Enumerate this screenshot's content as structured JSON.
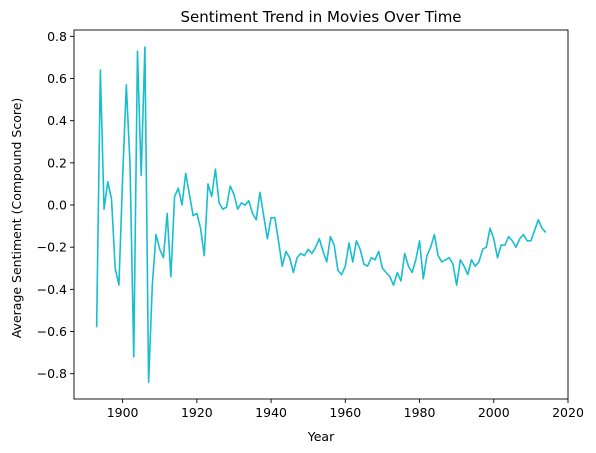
{
  "chart_data": {
    "type": "line",
    "title": "Sentiment Trend in Movies Over Time",
    "xlabel": "Year",
    "ylabel": "Average Sentiment (Compound Score)",
    "xlim": [
      1886.9,
      2020
    ],
    "ylim": [
      -0.92,
      0.83
    ],
    "xticks": [
      1900,
      1920,
      1940,
      1960,
      1980,
      2000,
      2020
    ],
    "yticks": [
      -0.8,
      -0.6,
      -0.4,
      -0.2,
      0.0,
      0.2,
      0.4,
      0.6,
      0.8
    ],
    "ytick_labels": [
      "−0.8",
      "−0.6",
      "−0.4",
      "−0.2",
      "0.0",
      "0.2",
      "0.4",
      "0.6",
      "0.8"
    ],
    "grid": false,
    "series": [
      {
        "name": "Average Sentiment",
        "color": "#17becf",
        "x": [
          1893,
          1894,
          1895,
          1896,
          1897,
          1898,
          1899,
          1900,
          1901,
          1902,
          1903,
          1904,
          1905,
          1906,
          1907,
          1908,
          1909,
          1910,
          1911,
          1912,
          1913,
          1914,
          1915,
          1916,
          1917,
          1918,
          1919,
          1920,
          1921,
          1922,
          1923,
          1924,
          1925,
          1926,
          1927,
          1928,
          1929,
          1930,
          1931,
          1932,
          1933,
          1934,
          1935,
          1936,
          1937,
          1938,
          1939,
          1940,
          1941,
          1942,
          1943,
          1944,
          1945,
          1946,
          1947,
          1948,
          1949,
          1950,
          1951,
          1952,
          1953,
          1954,
          1955,
          1956,
          1957,
          1958,
          1959,
          1960,
          1961,
          1962,
          1963,
          1964,
          1965,
          1966,
          1967,
          1968,
          1969,
          1970,
          1971,
          1972,
          1973,
          1974,
          1975,
          1976,
          1977,
          1978,
          1979,
          1980,
          1981,
          1982,
          1983,
          1984,
          1985,
          1986,
          1987,
          1988,
          1989,
          1990,
          1991,
          1992,
          1993,
          1994,
          1995,
          1996,
          1997,
          1998,
          1999,
          2000,
          2001,
          2002,
          2003,
          2004,
          2005,
          2006,
          2007,
          2008,
          2009,
          2010,
          2011,
          2012,
          2013,
          2014
        ],
        "values": [
          -0.58,
          0.64,
          -0.02,
          0.11,
          0.03,
          -0.3,
          -0.38,
          0.13,
          0.57,
          0.19,
          -0.72,
          0.73,
          0.14,
          0.75,
          -0.84,
          -0.38,
          -0.14,
          -0.21,
          -0.25,
          -0.04,
          -0.34,
          0.04,
          0.08,
          0.0,
          0.15,
          0.05,
          -0.05,
          -0.04,
          -0.11,
          -0.24,
          0.1,
          0.04,
          0.17,
          0.01,
          -0.02,
          -0.01,
          0.09,
          0.05,
          -0.02,
          0.01,
          0.0,
          0.02,
          -0.04,
          -0.07,
          0.06,
          -0.05,
          -0.16,
          -0.06,
          -0.06,
          -0.17,
          -0.29,
          -0.22,
          -0.25,
          -0.32,
          -0.25,
          -0.23,
          -0.24,
          -0.21,
          -0.23,
          -0.2,
          -0.16,
          -0.22,
          -0.27,
          -0.15,
          -0.19,
          -0.31,
          -0.33,
          -0.29,
          -0.18,
          -0.27,
          -0.17,
          -0.21,
          -0.28,
          -0.29,
          -0.25,
          -0.26,
          -0.22,
          -0.3,
          -0.32,
          -0.34,
          -0.38,
          -0.32,
          -0.36,
          -0.23,
          -0.29,
          -0.32,
          -0.26,
          -0.17,
          -0.35,
          -0.24,
          -0.2,
          -0.14,
          -0.24,
          -0.27,
          -0.26,
          -0.25,
          -0.28,
          -0.38,
          -0.26,
          -0.29,
          -0.33,
          -0.26,
          -0.29,
          -0.27,
          -0.21,
          -0.2,
          -0.11,
          -0.16,
          -0.25,
          -0.19,
          -0.19,
          -0.15,
          -0.17,
          -0.2,
          -0.16,
          -0.14,
          -0.17,
          -0.17,
          -0.12,
          -0.07,
          -0.11,
          -0.13
        ]
      }
    ]
  }
}
